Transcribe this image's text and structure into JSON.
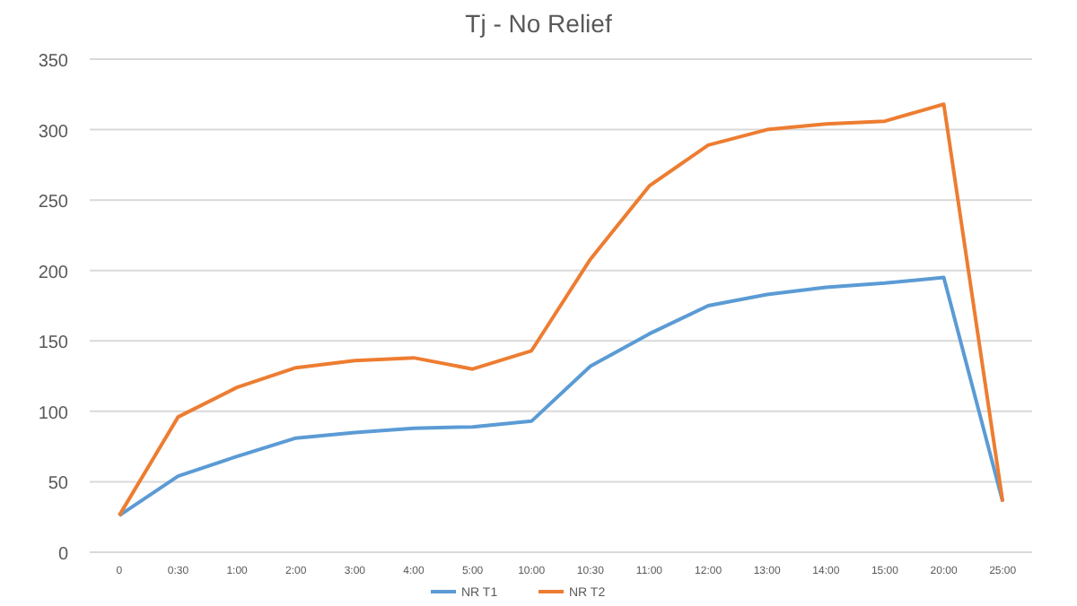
{
  "chart_data": {
    "type": "line",
    "title": "Tj - No Relief",
    "categories": [
      "0",
      "0:30",
      "1:00",
      "2:00",
      "3:00",
      "4:00",
      "5:00",
      "10:00",
      "10:30",
      "11:00",
      "12:00",
      "13:00",
      "14:00",
      "15:00",
      "20:00",
      "25:00"
    ],
    "series": [
      {
        "name": "NR T1",
        "color": "#5b9bd5",
        "values": [
          26,
          54,
          68,
          81,
          85,
          88,
          89,
          93,
          132,
          155,
          175,
          183,
          188,
          191,
          195,
          36
        ]
      },
      {
        "name": "NR T2",
        "color": "#ed7d31",
        "values": [
          26,
          96,
          117,
          131,
          136,
          138,
          130,
          143,
          208,
          260,
          289,
          300,
          304,
          306,
          318,
          36
        ]
      }
    ],
    "ylim": [
      0,
      350
    ],
    "yticks": [
      0,
      50,
      100,
      150,
      200,
      250,
      300,
      350
    ],
    "grid": "y",
    "legend": "bottom",
    "marker": "none"
  }
}
